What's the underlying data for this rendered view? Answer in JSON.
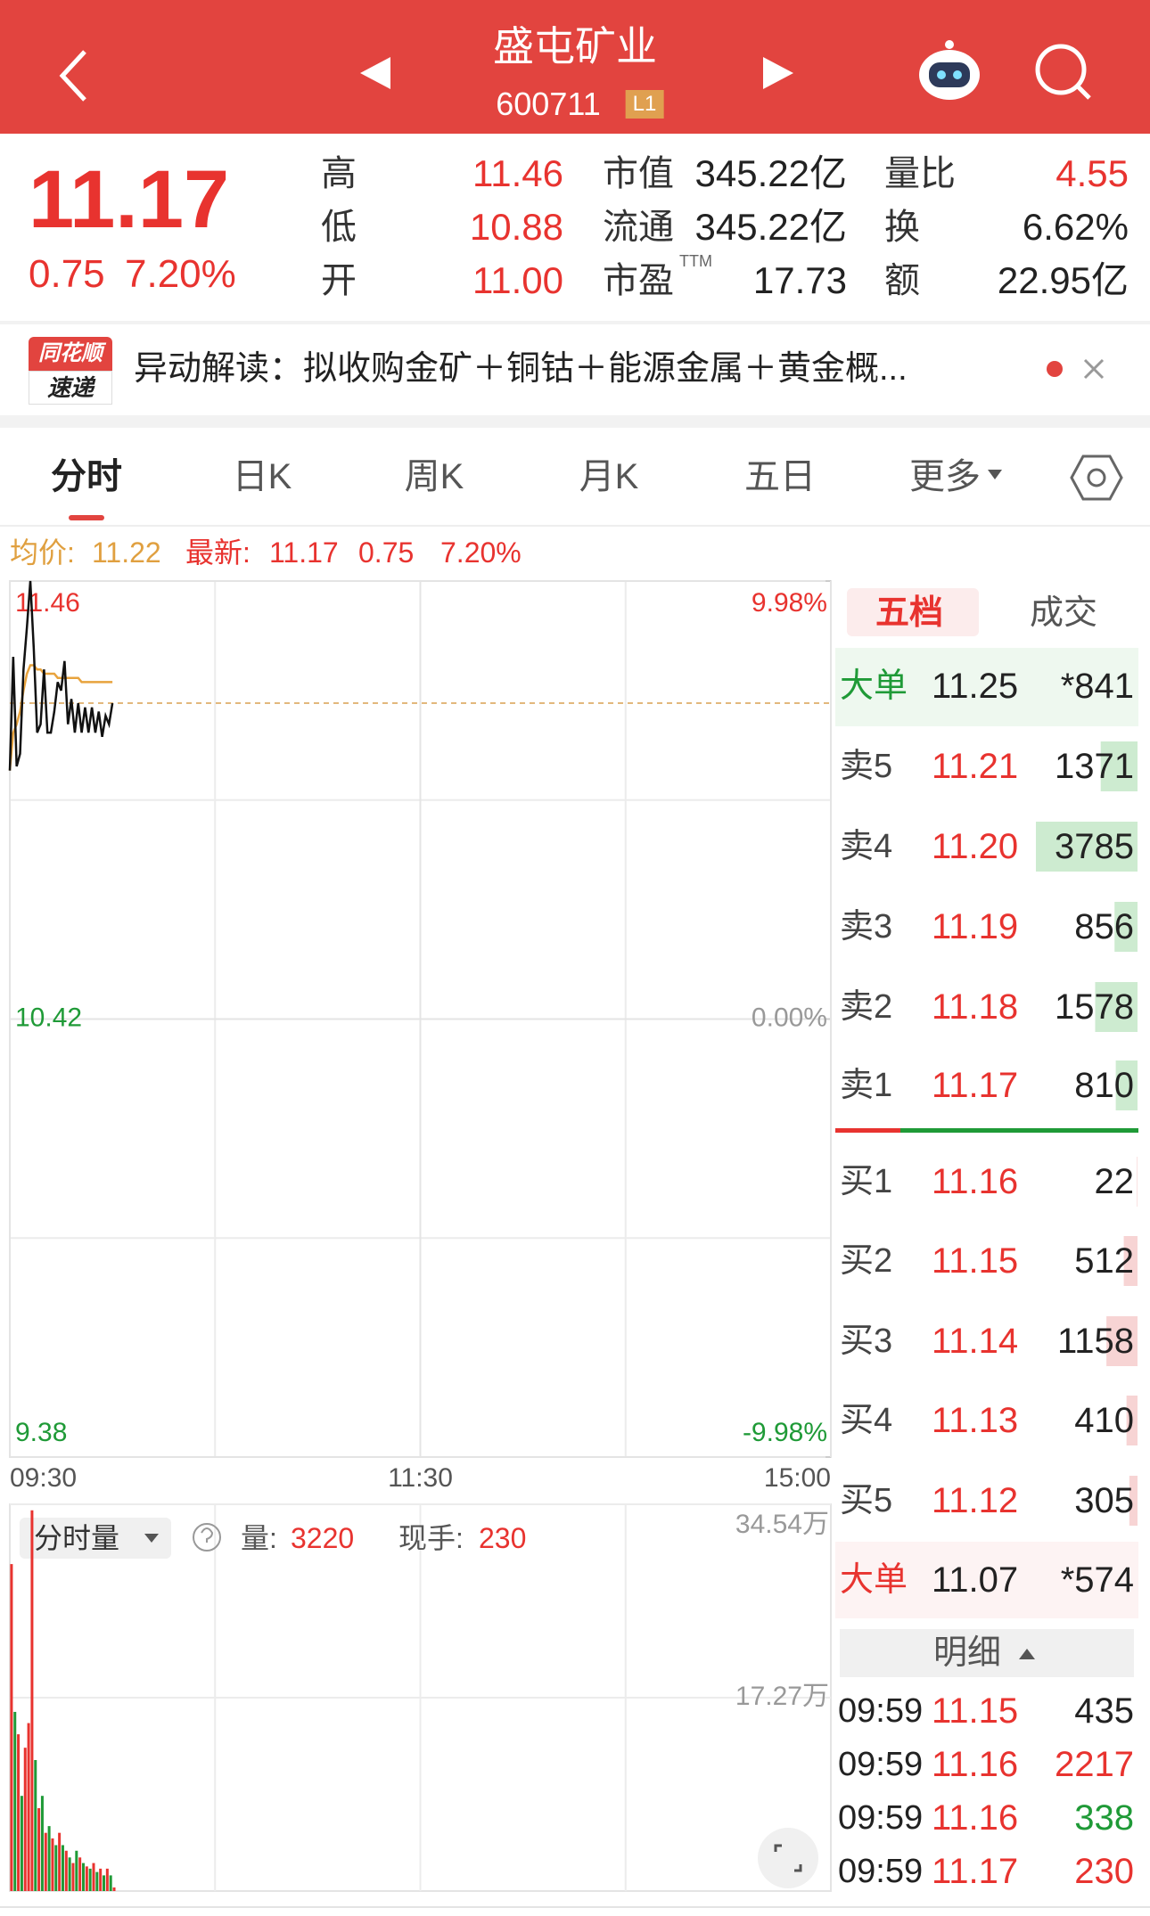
{
  "header": {
    "title": "盛屯矿业",
    "code": "600711",
    "level": "L1"
  },
  "quote": {
    "price": "11.17",
    "change": "0.75",
    "change_pct": "7.20%",
    "stats": [
      [
        {
          "label": "高",
          "value": "11.46"
        },
        {
          "label": "市值",
          "value": "345.22亿"
        },
        {
          "label": "量比",
          "value": "4.55"
        }
      ],
      [
        {
          "label": "低",
          "value": "10.88"
        },
        {
          "label": "流通",
          "value": "345.22亿"
        },
        {
          "label": "换",
          "value": "6.62%"
        }
      ],
      [
        {
          "label": "开",
          "value": "11.00"
        },
        {
          "label": "市盈",
          "note": "TTM",
          "value": "17.73"
        },
        {
          "label": "额",
          "value": "22.95亿"
        }
      ]
    ]
  },
  "news": {
    "badge": [
      "同花顺",
      "速递"
    ],
    "text": "异动解读：拟收购金矿＋铜钴＋能源金属＋黄金概..."
  },
  "tabs": [
    "分时",
    "日K",
    "周K",
    "月K",
    "五日",
    "更多"
  ],
  "summary": {
    "avg_label": "均价:",
    "avg": "11.22",
    "latest_label": "最新:",
    "latest": "11.17",
    "change": "0.75",
    "change_pct": "7.20%"
  },
  "chart_data": [
    {
      "type": "line",
      "x": [
        0,
        1,
        2,
        3,
        4,
        5,
        6,
        7,
        8,
        9,
        10,
        11,
        12,
        13,
        14,
        15,
        16,
        17,
        18,
        19,
        20,
        21,
        22,
        23,
        24,
        25,
        26,
        27,
        28,
        29,
        30
      ],
      "xlim": [
        0,
        240
      ],
      "xticks": [
        {
          "value": 0,
          "label": "09:30"
        },
        {
          "value": 120,
          "label": "11:30"
        },
        {
          "value": 240,
          "label": "15:00"
        }
      ],
      "ylim": [
        9.38,
        11.46
      ],
      "yticks": [
        9.38,
        10.42,
        11.46
      ],
      "y2lim": [
        -9.98,
        9.98
      ],
      "y2ticks": [
        {
          "value": -9.98,
          "label": "-9.98%"
        },
        {
          "value": 0,
          "label": "0.00%"
        },
        {
          "value": 9.98,
          "label": "9.98%"
        }
      ],
      "series": [
        {
          "color": "#111111",
          "values": [
            11.01,
            11.28,
            11.02,
            11.05,
            11.25,
            11.35,
            11.46,
            11.3,
            11.1,
            11.12,
            11.25,
            11.1,
            11.1,
            11.15,
            11.22,
            11.2,
            11.27,
            11.12,
            11.18,
            11.1,
            11.17,
            11.1,
            11.16,
            11.1,
            11.16,
            11.1,
            11.15,
            11.09,
            11.14,
            11.12,
            11.17
          ]
        },
        {
          "color": "#e8a33d",
          "values": [
            11.01,
            11.1,
            11.12,
            11.15,
            11.2,
            11.24,
            11.26,
            11.26,
            11.25,
            11.25,
            11.24,
            11.24,
            11.24,
            11.24,
            11.23,
            11.23,
            11.23,
            11.23,
            11.23,
            11.23,
            11.23,
            11.22,
            11.22,
            11.22,
            11.22,
            11.22,
            11.22,
            11.22,
            11.22,
            11.22,
            11.22
          ]
        }
      ]
    },
    {
      "type": "bar",
      "x": [
        0,
        1,
        2,
        3,
        4,
        5,
        6,
        7,
        8,
        9,
        10,
        11,
        12,
        13,
        14,
        15,
        16,
        17,
        18,
        19,
        20,
        21,
        22,
        23,
        24,
        25,
        26,
        27,
        28,
        29,
        30
      ],
      "xlim": [
        0,
        240
      ],
      "ylim": [
        0,
        345400
      ],
      "yticks": [
        {
          "value": 172700,
          "label": "17.27万"
        },
        {
          "value": 345400,
          "label": "34.54万"
        }
      ],
      "values": [
        292000,
        160000,
        140000,
        85000,
        128000,
        150000,
        340000,
        117000,
        74000,
        85000,
        52000,
        58000,
        47000,
        41000,
        52000,
        41000,
        36000,
        30000,
        25000,
        36000,
        30000,
        25000,
        22000,
        20000,
        25000,
        17000,
        20000,
        14000,
        20000,
        14000,
        3220
      ],
      "colors": [
        "#e8332f",
        "#1f9a37",
        "#e8332f",
        "#1f9a37",
        "#e8332f",
        "#e8332f",
        "#e8332f",
        "#1f9a37",
        "#e8332f",
        "#1f9a37",
        "#e8332f",
        "#1f9a37",
        "#e8332f",
        "#1f9a37",
        "#e8332f",
        "#1f9a37",
        "#e8332f",
        "#1f9a37",
        "#e8332f",
        "#1f9a37",
        "#e8332f",
        "#1f9a37",
        "#e8332f",
        "#1f9a37",
        "#e8332f",
        "#1f9a37",
        "#e8332f",
        "#1f9a37",
        "#e8332f",
        "#1f9a37",
        "#e8332f"
      ]
    }
  ],
  "volume_info": {
    "selector": "分时量",
    "volume_label": "量:",
    "volume": "3220",
    "hand_label": "现手:",
    "hand": "230"
  },
  "order_book": {
    "tabs": [
      "五档",
      "成交"
    ],
    "big_sell": {
      "label": "大单",
      "price": "11.25",
      "volume": "*841"
    },
    "asks": [
      {
        "label": "卖5",
        "price": "11.21",
        "volume": 1371
      },
      {
        "label": "卖4",
        "price": "11.20",
        "volume": 3785
      },
      {
        "label": "卖3",
        "price": "11.19",
        "volume": 856
      },
      {
        "label": "卖2",
        "price": "11.18",
        "volume": 1578
      },
      {
        "label": "卖1",
        "price": "11.17",
        "volume": 810
      }
    ],
    "bids": [
      {
        "label": "买1",
        "price": "11.16",
        "volume": 22
      },
      {
        "label": "买2",
        "price": "11.15",
        "volume": 512
      },
      {
        "label": "买3",
        "price": "11.14",
        "volume": 1158
      },
      {
        "label": "买4",
        "price": "11.13",
        "volume": 410
      },
      {
        "label": "买5",
        "price": "11.12",
        "volume": 305
      }
    ],
    "big_buy": {
      "label": "大单",
      "price": "11.07",
      "volume": "*574"
    },
    "detail": "明细",
    "trades": [
      {
        "time": "09:59",
        "price": "11.15",
        "volume": "435",
        "color": "#222222"
      },
      {
        "time": "09:59",
        "price": "11.16",
        "volume": "2217",
        "color": "#e8332f"
      },
      {
        "time": "09:59",
        "price": "11.16",
        "volume": "338",
        "color": "#1f9a37"
      },
      {
        "time": "09:59",
        "price": "11.17",
        "volume": "230",
        "color": "#e8332f"
      }
    ]
  }
}
